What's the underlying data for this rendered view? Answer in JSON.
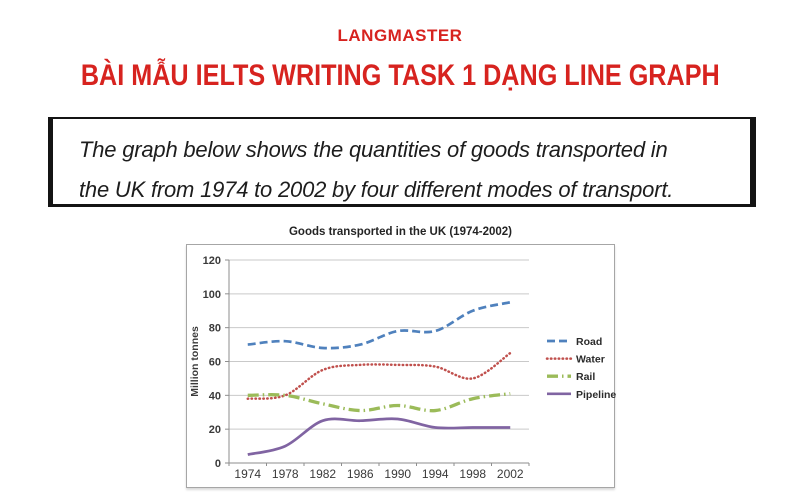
{
  "brand": {
    "logo_text": "LANGMASTER",
    "accent_color": "#d7231f"
  },
  "heading": {
    "title": "BÀI MẪU IELTS WRITING TASK 1 DẠNG LINE GRAPH"
  },
  "task_prompt": {
    "lines": [
      "The graph below shows the quantities of goods transported in",
      "the UK from 1974 to 2002 by four different modes of transport."
    ]
  },
  "chart_data": {
    "type": "line",
    "title": "Goods transported in the UK (1974-2002)",
    "xlabel": "",
    "ylabel": "Million tonnes",
    "categories": [
      "1974",
      "1978",
      "1982",
      "1986",
      "1990",
      "1994",
      "1998",
      "2002"
    ],
    "ylim": [
      0,
      120
    ],
    "ytick_step": 20,
    "grid": true,
    "legend_position": "right",
    "series": [
      {
        "name": "Road",
        "values": [
          70,
          72,
          68,
          70,
          78,
          78,
          90,
          95
        ],
        "color": "#4f81bd",
        "style": "dashed"
      },
      {
        "name": "Water",
        "values": [
          38,
          40,
          55,
          58,
          58,
          57,
          50,
          65
        ],
        "color": "#c0504d",
        "style": "dotted"
      },
      {
        "name": "Rail",
        "values": [
          40,
          40,
          35,
          31,
          34,
          31,
          38,
          41
        ],
        "color": "#9bbb59",
        "style": "dashdot"
      },
      {
        "name": "Pipeline",
        "values": [
          5,
          10,
          25,
          25,
          26,
          21,
          21,
          21
        ],
        "color": "#8064a2",
        "style": "solid"
      }
    ]
  }
}
